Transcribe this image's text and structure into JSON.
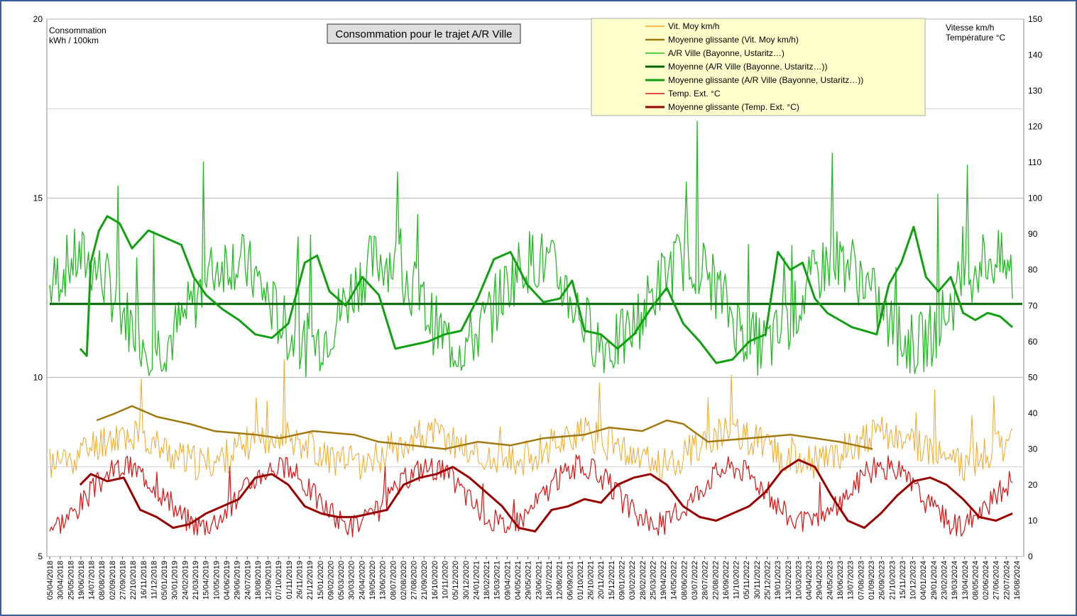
{
  "chart_data": {
    "type": "line",
    "title": "Consommation pour le trajet A/R Ville",
    "ylabel": [
      "Consommation",
      "kWh / 100km"
    ],
    "y2label": [
      "Vitesse km/h",
      "Température °C"
    ],
    "ylim": [
      5,
      20
    ],
    "yticks": [
      5,
      10,
      15,
      20
    ],
    "y2lim": [
      0,
      150
    ],
    "y2ticks": [
      0,
      10,
      20,
      30,
      40,
      50,
      60,
      70,
      80,
      90,
      100,
      110,
      120,
      130,
      140,
      150
    ],
    "grid": true,
    "legend_position": "top-right",
    "x_dates": [
      "05/04/2018",
      "30/04/2018",
      "25/05/2018",
      "19/06/2018",
      "14/07/2018",
      "08/08/2018",
      "02/09/2018",
      "27/09/2018",
      "22/10/2018",
      "16/11/2018",
      "11/12/2018",
      "05/01/2019",
      "30/01/2019",
      "24/02/2019",
      "21/03/2019",
      "15/04/2019",
      "10/05/2019",
      "04/06/2019",
      "29/06/2019",
      "24/07/2019",
      "18/08/2019",
      "12/09/2019",
      "07/10/2019",
      "01/11/2019",
      "26/11/2019",
      "21/12/2019",
      "15/01/2020",
      "09/02/2020",
      "05/03/2020",
      "30/03/2020",
      "24/04/2020",
      "19/05/2020",
      "13/06/2020",
      "08/07/2020",
      "02/08/2020",
      "27/08/2020",
      "21/09/2020",
      "16/10/2020",
      "10/11/2020",
      "05/12/2020",
      "30/12/2020",
      "24/01/2021",
      "18/02/2021",
      "15/03/2021",
      "09/04/2021",
      "04/05/2021",
      "29/05/2021",
      "23/06/2021",
      "18/07/2021",
      "12/08/2021",
      "06/09/2021",
      "01/10/2021",
      "26/10/2021",
      "20/11/2021",
      "15/12/2021",
      "09/01/2022",
      "03/02/2022",
      "28/02/2022",
      "25/03/2022",
      "19/04/2022",
      "14/05/2022",
      "08/06/2022",
      "03/07/2022",
      "28/07/2022",
      "22/08/2022",
      "16/09/2022",
      "11/10/2022",
      "05/11/2022",
      "30/11/2022",
      "25/12/2022",
      "19/01/2023",
      "13/02/2023",
      "10/03/2023",
      "04/04/2023",
      "29/04/2023",
      "24/05/2023",
      "18/06/2023",
      "13/07/2023",
      "07/08/2023",
      "01/09/2023",
      "26/09/2023",
      "21/10/2023",
      "15/11/2023",
      "10/12/2023",
      "04/01/2024",
      "29/01/2024",
      "23/02/2024",
      "19/03/2024",
      "13/04/2024",
      "08/05/2024",
      "02/06/2024",
      "27/06/2024",
      "22/07/2024",
      "16/08/2024"
    ],
    "series": [
      {
        "name": "Vit. Moy km/h",
        "axis": "right",
        "color": "#f5a623",
        "width": 1,
        "style": "raw",
        "base": 30,
        "amp": 4,
        "phase": 0,
        "noise": 5,
        "spikes": 10,
        "seed": 11,
        "start": 0.0,
        "end": 1.0
      },
      {
        "name": "Moyenne glissante (Vit. Moy km/h)",
        "axis": "right",
        "color": "#a07a10",
        "width": 2.5,
        "style": "smooth",
        "points": [
          [
            0.057,
            38
          ],
          [
            0.08,
            40
          ],
          [
            0.1,
            42
          ],
          [
            0.13,
            39
          ],
          [
            0.17,
            37
          ],
          [
            0.2,
            35
          ],
          [
            0.25,
            34
          ],
          [
            0.28,
            33
          ],
          [
            0.32,
            35
          ],
          [
            0.37,
            34
          ],
          [
            0.4,
            32
          ],
          [
            0.44,
            31
          ],
          [
            0.48,
            30
          ],
          [
            0.52,
            32
          ],
          [
            0.56,
            31
          ],
          [
            0.6,
            33
          ],
          [
            0.65,
            34
          ],
          [
            0.68,
            36
          ],
          [
            0.72,
            35
          ],
          [
            0.75,
            38
          ],
          [
            0.77,
            37
          ],
          [
            0.8,
            32
          ],
          [
            0.85,
            33
          ],
          [
            0.9,
            34
          ],
          [
            0.93,
            33
          ],
          [
            0.96,
            32
          ],
          [
            1.0,
            30
          ]
        ]
      },
      {
        "name": "A/R Ville (Bayonne, Ustaritz…)",
        "axis": "left",
        "color": "#22bb22",
        "width": 1.3,
        "style": "raw",
        "base": 12.1,
        "amp": 1.2,
        "phase": -0.2,
        "noise": 0.9,
        "spikes": 14,
        "seed": 7,
        "start": 0.0,
        "end": 1.0
      },
      {
        "name": "Moyenne (A/R Ville (Bayonne, Ustaritz…))",
        "axis": "left",
        "color": "#006400",
        "width": 3,
        "style": "flat",
        "value": 12.05
      },
      {
        "name": "Moyenne glissante (A/R Ville (Bayonne, Ustaritz…))",
        "axis": "left",
        "color": "#11a011",
        "width": 3,
        "style": "smooth",
        "points": [
          [
            0.037,
            10.8
          ],
          [
            0.045,
            10.6
          ],
          [
            0.05,
            13.2
          ],
          [
            0.06,
            14.1
          ],
          [
            0.07,
            14.5
          ],
          [
            0.085,
            14.3
          ],
          [
            0.1,
            13.6
          ],
          [
            0.12,
            14.1
          ],
          [
            0.14,
            13.9
          ],
          [
            0.16,
            13.7
          ],
          [
            0.175,
            12.8
          ],
          [
            0.19,
            12.3
          ],
          [
            0.21,
            11.9
          ],
          [
            0.23,
            11.6
          ],
          [
            0.25,
            11.2
          ],
          [
            0.27,
            11.1
          ],
          [
            0.29,
            11.5
          ],
          [
            0.31,
            13.2
          ],
          [
            0.325,
            13.4
          ],
          [
            0.34,
            12.4
          ],
          [
            0.36,
            12.0
          ],
          [
            0.38,
            12.8
          ],
          [
            0.4,
            12.3
          ],
          [
            0.42,
            10.8
          ],
          [
            0.44,
            10.9
          ],
          [
            0.46,
            11.0
          ],
          [
            0.48,
            11.2
          ],
          [
            0.5,
            11.3
          ],
          [
            0.52,
            12.2
          ],
          [
            0.54,
            13.3
          ],
          [
            0.56,
            13.5
          ],
          [
            0.58,
            12.6
          ],
          [
            0.6,
            12.1
          ],
          [
            0.62,
            12.2
          ],
          [
            0.635,
            12.7
          ],
          [
            0.65,
            11.3
          ],
          [
            0.67,
            11.2
          ],
          [
            0.69,
            10.8
          ],
          [
            0.71,
            11.2
          ],
          [
            0.73,
            11.9
          ],
          [
            0.75,
            12.5
          ],
          [
            0.77,
            11.5
          ],
          [
            0.79,
            11.0
          ],
          [
            0.81,
            10.4
          ],
          [
            0.83,
            10.5
          ],
          [
            0.85,
            11.0
          ],
          [
            0.87,
            11.2
          ],
          [
            0.885,
            13.5
          ],
          [
            0.9,
            13.0
          ],
          [
            0.915,
            13.2
          ],
          [
            0.93,
            12.2
          ],
          [
            0.945,
            11.8
          ],
          [
            0.96,
            11.6
          ],
          [
            0.975,
            11.4
          ],
          [
            0.99,
            11.3
          ],
          [
            1.005,
            11.2
          ],
          [
            1.02,
            12.6
          ],
          [
            1.035,
            13.2
          ],
          [
            1.05,
            14.2
          ],
          [
            1.065,
            12.8
          ],
          [
            1.08,
            12.4
          ],
          [
            1.095,
            12.8
          ],
          [
            1.11,
            11.8
          ],
          [
            1.125,
            11.6
          ],
          [
            1.14,
            11.8
          ],
          [
            1.155,
            11.7
          ],
          [
            1.17,
            11.4
          ]
        ]
      },
      {
        "name": "Temp. Ext. °C",
        "axis": "right",
        "color": "#dd1111",
        "width": 1.2,
        "style": "raw",
        "base": 17,
        "amp": 8,
        "phase": 0.0,
        "noise": 3.5,
        "spikes": 6,
        "seed": 3,
        "start": 0.0,
        "end": 1.0
      },
      {
        "name": "Moyenne glissante (Temp. Ext. °C)",
        "axis": "right",
        "color": "#990000",
        "width": 3,
        "style": "smooth",
        "points": [
          [
            0.037,
            20
          ],
          [
            0.05,
            23
          ],
          [
            0.07,
            21
          ],
          [
            0.09,
            22
          ],
          [
            0.11,
            13
          ],
          [
            0.13,
            11
          ],
          [
            0.15,
            8
          ],
          [
            0.17,
            9
          ],
          [
            0.19,
            12
          ],
          [
            0.21,
            14
          ],
          [
            0.23,
            16
          ],
          [
            0.25,
            22
          ],
          [
            0.27,
            23
          ],
          [
            0.29,
            20
          ],
          [
            0.31,
            14
          ],
          [
            0.33,
            12
          ],
          [
            0.35,
            11
          ],
          [
            0.37,
            11
          ],
          [
            0.39,
            12
          ],
          [
            0.41,
            13
          ],
          [
            0.43,
            20
          ],
          [
            0.45,
            22
          ],
          [
            0.47,
            23
          ],
          [
            0.49,
            25
          ],
          [
            0.51,
            22
          ],
          [
            0.53,
            18
          ],
          [
            0.55,
            14
          ],
          [
            0.57,
            8
          ],
          [
            0.59,
            7
          ],
          [
            0.61,
            13
          ],
          [
            0.63,
            14
          ],
          [
            0.65,
            16
          ],
          [
            0.67,
            15
          ],
          [
            0.69,
            20
          ],
          [
            0.71,
            22
          ],
          [
            0.73,
            23
          ],
          [
            0.75,
            20
          ],
          [
            0.77,
            14
          ],
          [
            0.79,
            11
          ],
          [
            0.81,
            10
          ],
          [
            0.83,
            12
          ],
          [
            0.85,
            14
          ],
          [
            0.87,
            18
          ],
          [
            0.89,
            24
          ],
          [
            0.91,
            27
          ],
          [
            0.93,
            25
          ],
          [
            0.95,
            17
          ],
          [
            0.97,
            10
          ],
          [
            0.99,
            8
          ],
          [
            1.01,
            12
          ],
          [
            1.03,
            17
          ],
          [
            1.05,
            21
          ],
          [
            1.07,
            22
          ],
          [
            1.09,
            20
          ],
          [
            1.11,
            16
          ],
          [
            1.13,
            11
          ],
          [
            1.15,
            10
          ],
          [
            1.17,
            12
          ]
        ]
      }
    ]
  }
}
